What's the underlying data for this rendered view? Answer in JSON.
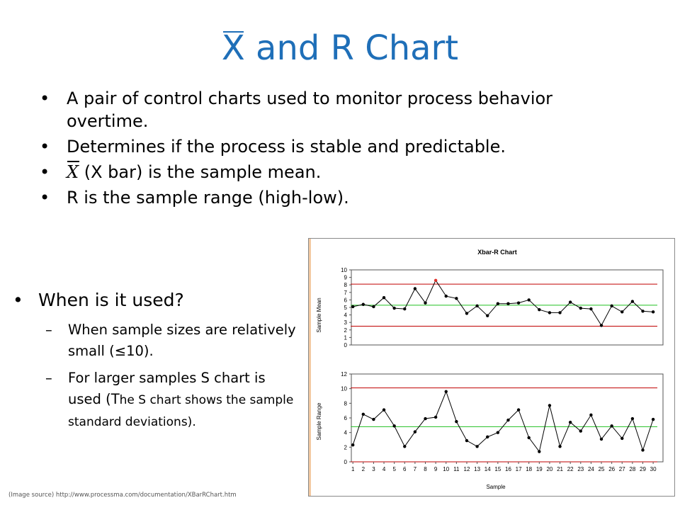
{
  "slide": {
    "title_symbol": "X",
    "title_text": "and R Chart",
    "bullets": [
      "A pair of control charts used to monitor process behavior overtime.",
      "Determines if the process is stable and predictable.",
      "(X bar) is the sample mean.",
      "R is the sample range (high-low)."
    ],
    "bullet3_symbol": "X",
    "bullet_glyph": "•",
    "when": {
      "heading": "When is it used?",
      "dash_glyph": "–",
      "sub1": "When sample sizes are relatively small (≤10).",
      "sub2_a": "For larger samples S chart is used (T",
      "sub2_b": "he S chart shows the sample standard deviations)."
    },
    "source": "(Image source) http://www.processma.com/documentation/XBarRChart.htm"
  },
  "chart_data": [
    {
      "type": "line",
      "title": "Xbar-R Chart",
      "ylabel": "Sample Mean",
      "xlabel": "",
      "ylim": [
        0,
        10
      ],
      "yticks": [
        0,
        1,
        2,
        3,
        4,
        5,
        6,
        7,
        8,
        9,
        10
      ],
      "x": [
        1,
        2,
        3,
        4,
        5,
        6,
        7,
        8,
        9,
        10,
        11,
        12,
        13,
        14,
        15,
        16,
        17,
        18,
        19,
        20,
        21,
        22,
        23,
        24,
        25,
        26,
        27,
        28,
        29,
        30
      ],
      "series": [
        {
          "values": [
            5.1,
            5.4,
            5.1,
            6.3,
            4.9,
            4.8,
            7.5,
            5.6,
            8.6,
            6.5,
            6.2,
            4.2,
            5.2,
            3.9,
            5.5,
            5.5,
            5.6,
            6.0,
            4.7,
            4.3,
            4.3,
            5.7,
            4.9,
            4.8,
            2.6,
            5.2,
            4.4,
            5.8,
            4.5,
            4.4
          ]
        }
      ],
      "highlight_point_index": 8,
      "control_limits": {
        "ucl": 8.1,
        "center": 5.3,
        "lcl": 2.5
      },
      "colors": {
        "line": "#000000",
        "ucl": "#c00000",
        "lcl": "#c00000",
        "center": "#22c022",
        "highlight": "#e0302a"
      },
      "grid": false
    },
    {
      "type": "line",
      "title": "",
      "ylabel": "Sample Range",
      "xlabel": "Sample",
      "ylim": [
        0,
        12
      ],
      "yticks": [
        0,
        2,
        4,
        6,
        8,
        10,
        12
      ],
      "x": [
        1,
        2,
        3,
        4,
        5,
        6,
        7,
        8,
        9,
        10,
        11,
        12,
        13,
        14,
        15,
        16,
        17,
        18,
        19,
        20,
        21,
        22,
        23,
        24,
        25,
        26,
        27,
        28,
        29,
        30
      ],
      "series": [
        {
          "values": [
            2.3,
            6.5,
            5.8,
            7.1,
            4.9,
            2.1,
            4.1,
            5.9,
            6.1,
            9.6,
            5.5,
            2.9,
            2.1,
            3.4,
            4.0,
            5.7,
            7.1,
            3.3,
            1.4,
            7.7,
            2.1,
            5.4,
            4.2,
            6.4,
            3.1,
            4.9,
            3.2,
            5.9,
            1.6,
            5.8
          ]
        }
      ],
      "control_limits": {
        "ucl": 10.1,
        "center": 4.8,
        "lcl": 0
      },
      "colors": {
        "line": "#000000",
        "ucl": "#c00000",
        "lcl": "#c00000",
        "center": "#22c022"
      },
      "grid": false
    }
  ]
}
